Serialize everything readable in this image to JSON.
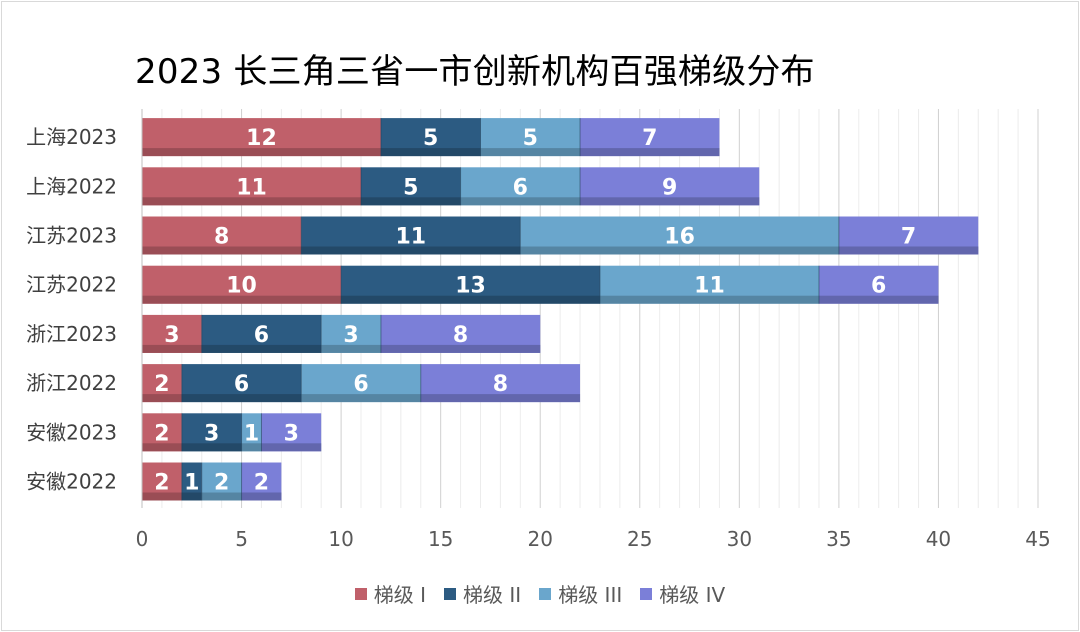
{
  "chart_data": {
    "type": "bar",
    "orientation": "horizontal",
    "stacked": true,
    "title": "2023 长三角三省一市创新机构百强梯级分布",
    "categories": [
      "上海2023",
      "上海2022",
      "江苏2023",
      "江苏2022",
      "浙江2023",
      "浙江2022",
      "安徽2023",
      "安徽2022"
    ],
    "series": [
      {
        "name": "梯级 I",
        "color": "#c0606a",
        "values": [
          12,
          11,
          8,
          10,
          3,
          2,
          2,
          2
        ]
      },
      {
        "name": "梯级 II",
        "color": "#2c5b82",
        "values": [
          5,
          5,
          11,
          13,
          6,
          6,
          3,
          1
        ]
      },
      {
        "name": "梯级 III",
        "color": "#6aa6cc",
        "values": [
          5,
          6,
          16,
          11,
          3,
          6,
          1,
          2
        ]
      },
      {
        "name": "梯级 IV",
        "color": "#7b7fd8",
        "values": [
          7,
          9,
          7,
          6,
          8,
          8,
          3,
          2
        ]
      }
    ],
    "xlim": [
      0,
      45
    ],
    "xticks": [
      0,
      5,
      10,
      15,
      20,
      25,
      30,
      35,
      40,
      45
    ],
    "xlabel": "",
    "ylabel": "",
    "grid": true,
    "legend_position": "bottom"
  }
}
